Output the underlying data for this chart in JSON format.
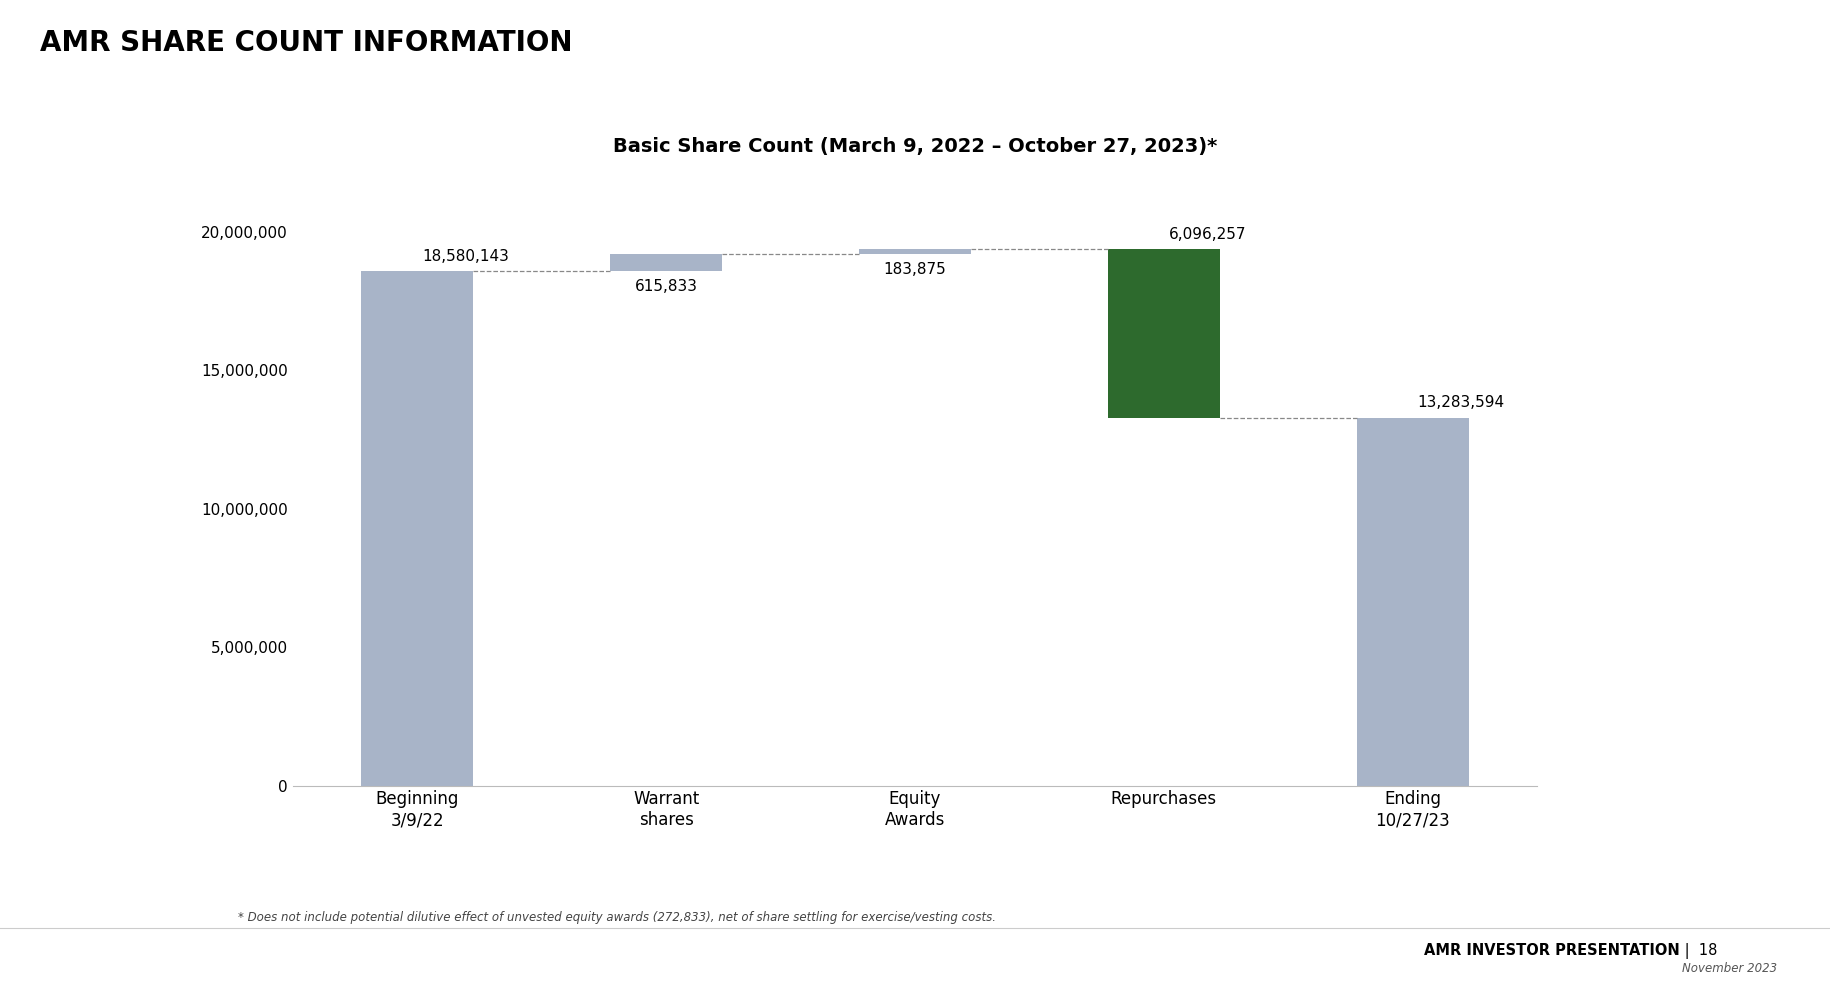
{
  "title": "Basic Share Count (March 9, 2022 – October 27, 2023)*",
  "main_title": "AMR SHARE COUNT INFORMATION",
  "categories": [
    "Beginning\n3/9/22",
    "Warrant\nshares",
    "Equity\nAwards",
    "Repurchases",
    "Ending\n10/27/23"
  ],
  "values": [
    18580143,
    615833,
    183875,
    -6096257,
    13283594
  ],
  "bar_labels": [
    "18,580,143",
    "615,833",
    "183,875",
    "6,096,257",
    "13,283,594"
  ],
  "bar_color_blue": "#a8b4c8",
  "bar_color_green": "#2d6a2d",
  "connector_color": "#888888",
  "background_color": "#ffffff",
  "ylim": [
    0,
    22000000
  ],
  "yticks": [
    0,
    5000000,
    10000000,
    15000000,
    20000000
  ],
  "ytick_labels": [
    "0",
    "5,000,000",
    "10,000,000",
    "15,000,000",
    "20,000,000"
  ],
  "footer_text": "* Does not include potential dilutive effect of unvested equity awards (272,833), net of share settling for exercise/vesting costs.",
  "footer_right_bold": "AMR INVESTOR PRESENTATION",
  "footer_right_sep": " |  ",
  "footer_right_page": "18",
  "footer_right_sub": "November 2023",
  "title_fontsize": 14,
  "main_title_fontsize": 20,
  "label_fontsize": 11,
  "tick_fontsize": 11,
  "xtick_fontsize": 12
}
